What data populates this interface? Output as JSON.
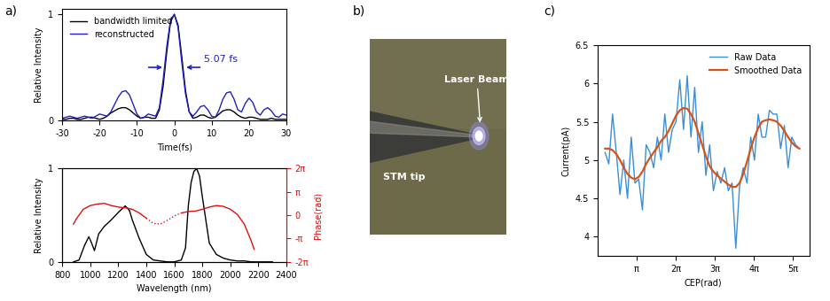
{
  "panel_labels": [
    "a)",
    "b)",
    "c)"
  ],
  "chart_data": [
    {
      "type": "line",
      "x_label": "Time(fs)",
      "y_label": "Relative Intensity",
      "x": [
        -30,
        -29,
        -28,
        -27,
        -26,
        -25,
        -24,
        -23,
        -22,
        -21,
        -20,
        -19,
        -18,
        -17,
        -16,
        -15,
        -14,
        -13,
        -12,
        -11,
        -10,
        -9,
        -8,
        -7,
        -6,
        -5,
        -4,
        -3,
        -2,
        -1,
        0,
        1,
        2,
        3,
        4,
        5,
        6,
        7,
        8,
        9,
        10,
        11,
        12,
        13,
        14,
        15,
        16,
        17,
        18,
        19,
        20,
        21,
        22,
        23,
        24,
        25,
        26,
        27,
        28,
        29,
        30
      ],
      "series": [
        {
          "name": "bandwidth limited",
          "color": "#000000",
          "line_style": "solid",
          "values": [
            0.01,
            0.01,
            0.02,
            0.02,
            0.01,
            0.01,
            0.02,
            0.03,
            0.03,
            0.02,
            0.01,
            0.02,
            0.04,
            0.07,
            0.09,
            0.11,
            0.12,
            0.12,
            0.1,
            0.07,
            0.04,
            0.02,
            0.03,
            0.03,
            0.02,
            0.02,
            0.1,
            0.32,
            0.65,
            0.93,
            1.0,
            0.9,
            0.6,
            0.28,
            0.08,
            0.02,
            0.03,
            0.05,
            0.05,
            0.03,
            0.02,
            0.03,
            0.06,
            0.09,
            0.1,
            0.1,
            0.08,
            0.05,
            0.03,
            0.02,
            0.03,
            0.03,
            0.02,
            0.01,
            0.01,
            0.01,
            0.02,
            0.01,
            0.01,
            0.01,
            0.01
          ]
        },
        {
          "name": "reconstructed",
          "color": "#2020c8",
          "line_style": "solid",
          "values": [
            0.02,
            0.03,
            0.04,
            0.03,
            0.02,
            0.03,
            0.04,
            0.03,
            0.02,
            0.04,
            0.06,
            0.05,
            0.04,
            0.08,
            0.15,
            0.22,
            0.27,
            0.28,
            0.24,
            0.15,
            0.06,
            0.02,
            0.03,
            0.06,
            0.05,
            0.04,
            0.12,
            0.38,
            0.7,
            0.95,
            1.0,
            0.88,
            0.55,
            0.25,
            0.08,
            0.04,
            0.08,
            0.13,
            0.14,
            0.1,
            0.04,
            0.03,
            0.1,
            0.2,
            0.26,
            0.27,
            0.2,
            0.1,
            0.08,
            0.16,
            0.21,
            0.17,
            0.08,
            0.05,
            0.1,
            0.12,
            0.09,
            0.04,
            0.03,
            0.06,
            0.05
          ]
        }
      ],
      "annotations": [
        {
          "text": "5.07 fs",
          "width": 5.07,
          "color": "#2020c8"
        }
      ],
      "xlim": [
        -30,
        30
      ],
      "xticks": [
        -30,
        -20,
        -10,
        0,
        10,
        20,
        30
      ],
      "ylim": [
        0,
        1.05
      ],
      "yticks": [
        0,
        1
      ],
      "legend": "upper left"
    },
    {
      "type": "line",
      "x_label": "Wavelength (nm)",
      "y_label": "Relative Intensity",
      "y2_label": "Phase(rad)",
      "series": [
        {
          "color": "#000000",
          "line_style": "solid",
          "x": [
            880,
            920,
            960,
            990,
            1010,
            1030,
            1060,
            1100,
            1150,
            1200,
            1250,
            1280,
            1300,
            1350,
            1400,
            1450,
            1500,
            1550,
            1600,
            1650,
            1680,
            1700,
            1720,
            1740,
            1760,
            1780,
            1800,
            1850,
            1900,
            1950,
            2000,
            2050,
            2100,
            2150,
            2200,
            2250,
            2300
          ],
          "values": [
            0,
            0.02,
            0.18,
            0.27,
            0.2,
            0.12,
            0.3,
            0.38,
            0.45,
            0.53,
            0.6,
            0.55,
            0.45,
            0.25,
            0.08,
            0.02,
            0.01,
            0,
            0,
            0.02,
            0.15,
            0.6,
            0.85,
            0.97,
            1.0,
            0.92,
            0.7,
            0.2,
            0.08,
            0.04,
            0.02,
            0.01,
            0.01,
            0,
            0,
            0,
            0
          ]
        },
        {
          "color": "#e01010",
          "line_style": "solid",
          "axis": "y2",
          "x": [
            880,
            900,
            950,
            1000,
            1050,
            1100,
            1150,
            1200,
            1250,
            1300,
            1350,
            1400
          ],
          "values": [
            -1.2,
            -0.5,
            0.8,
            1.3,
            1.5,
            1.6,
            1.3,
            1.1,
            1.0,
            0.8,
            0.3,
            -0.4
          ]
        },
        {
          "color": "#e01010",
          "line_style": "dotted",
          "axis": "y2",
          "x": [
            1400,
            1450,
            1500,
            1550,
            1600,
            1650
          ],
          "values": [
            -0.4,
            -1.1,
            -1.2,
            -0.7,
            -0.1,
            0.3
          ]
        },
        {
          "color": "#e01010",
          "line_style": "solid",
          "axis": "y2",
          "x": [
            1650,
            1700,
            1750,
            1800,
            1850,
            1900,
            1950,
            2000,
            2050,
            2100,
            2150,
            2170
          ],
          "values": [
            0.3,
            0.5,
            0.55,
            0.8,
            1.1,
            1.3,
            1.2,
            0.8,
            0.1,
            -1.2,
            -3.5,
            -4.6
          ]
        }
      ],
      "xlim": [
        800,
        2400
      ],
      "xticks": [
        800,
        1000,
        1200,
        1400,
        1600,
        1800,
        2000,
        2200,
        2400
      ],
      "ylim": [
        0,
        1
      ],
      "yticks": [
        0,
        1
      ],
      "y2lim": [
        -6.2832,
        6.2832
      ],
      "y2ticks": [
        {
          "value": -6.2832,
          "label": "-2π"
        },
        {
          "value": -3.1416,
          "label": "-π"
        },
        0,
        {
          "value": 3.1416,
          "label": "π"
        },
        {
          "value": 6.2832,
          "label": "2π"
        }
      ]
    },
    {
      "type": "line",
      "x_label": "CEP(rad)",
      "y_label": "Current(pA)",
      "x": [
        0.6,
        0.9,
        1.2,
        1.5,
        1.8,
        2.1,
        2.4,
        2.7,
        3.0,
        3.3,
        3.6,
        3.9,
        4.2,
        4.5,
        4.8,
        5.1,
        5.4,
        5.7,
        6.0,
        6.3,
        6.6,
        6.9,
        7.2,
        7.5,
        7.8,
        8.1,
        8.4,
        8.7,
        9.0,
        9.3,
        9.6,
        9.9,
        10.2,
        10.5,
        10.8,
        11.1,
        11.4,
        11.7,
        12.0,
        12.3,
        12.6,
        12.9,
        13.2,
        13.5,
        13.8,
        14.1,
        14.4,
        14.7,
        15.0,
        15.3,
        15.6,
        15.9,
        16.2
      ],
      "series": [
        {
          "name": "Raw Data",
          "color": "#3b8fd4",
          "line_style": "solid",
          "values": [
            5.1,
            4.95,
            5.6,
            5.1,
            4.55,
            5.0,
            4.5,
            5.3,
            4.7,
            4.75,
            4.35,
            5.2,
            5.1,
            4.9,
            5.3,
            5.0,
            5.6,
            5.1,
            5.4,
            5.5,
            6.05,
            5.4,
            6.1,
            5.3,
            5.95,
            5.1,
            5.5,
            4.8,
            5.2,
            4.6,
            4.85,
            4.7,
            4.9,
            4.6,
            4.7,
            3.85,
            4.65,
            4.9,
            4.7,
            5.3,
            5.0,
            5.6,
            5.3,
            5.3,
            5.65,
            5.6,
            5.6,
            5.15,
            5.45,
            4.9,
            5.3,
            5.2,
            5.15
          ]
        },
        {
          "name": "Smoothed Data",
          "color": "#d95319",
          "line_style": "solid",
          "values": [
            5.15,
            5.15,
            5.13,
            5.08,
            5.0,
            4.9,
            4.82,
            4.77,
            4.75,
            4.78,
            4.85,
            4.95,
            5.03,
            5.1,
            5.17,
            5.25,
            5.3,
            5.38,
            5.48,
            5.58,
            5.65,
            5.68,
            5.67,
            5.6,
            5.5,
            5.35,
            5.2,
            5.05,
            4.92,
            4.85,
            4.8,
            4.76,
            4.72,
            4.68,
            4.65,
            4.65,
            4.7,
            4.82,
            4.98,
            5.15,
            5.3,
            5.42,
            5.5,
            5.52,
            5.53,
            5.52,
            5.5,
            5.45,
            5.38,
            5.3,
            5.23,
            5.18,
            5.15
          ]
        }
      ],
      "xlim": [
        0,
        17
      ],
      "xticks": [
        {
          "value": 3.1416,
          "label": "π"
        },
        {
          "value": 6.2832,
          "label": "2π"
        },
        {
          "value": 9.4248,
          "label": "3π"
        },
        {
          "value": 12.5664,
          "label": "4π"
        },
        {
          "value": 15.708,
          "label": "5π"
        }
      ],
      "ylim": [
        3.75,
        6.5
      ],
      "yticks": [
        4,
        4.5,
        5,
        5.5,
        6,
        6.5
      ],
      "legend": "upper right"
    }
  ],
  "photo": {
    "labels": {
      "tip": "STM tip",
      "beam": "Laser Beam"
    }
  }
}
